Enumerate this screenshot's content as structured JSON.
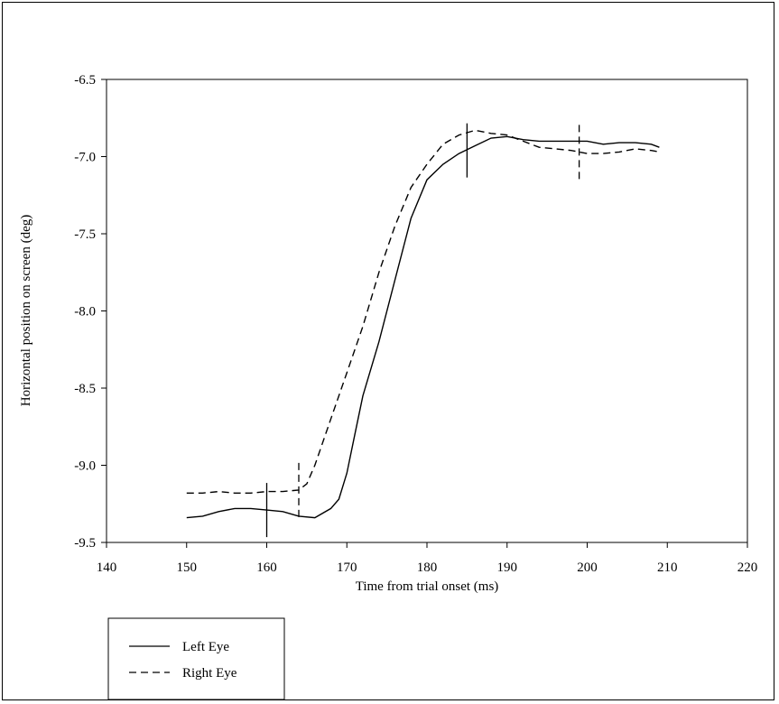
{
  "chart_data": {
    "type": "line",
    "title": "",
    "xlabel": "Time from trial onset (ms)",
    "ylabel": "Horizontal position on screen (deg)",
    "xlim": [
      140,
      220
    ],
    "ylim": [
      -9.5,
      -6.5
    ],
    "x_ticks": [
      140,
      150,
      160,
      170,
      180,
      190,
      200,
      210,
      220
    ],
    "y_ticks": [
      -6.5,
      -7.0,
      -7.5,
      -8.0,
      -8.5,
      -9.0,
      -9.5
    ],
    "x_tick_labels": [
      "140",
      "150",
      "160",
      "170",
      "180",
      "190",
      "200",
      "210",
      "220"
    ],
    "y_tick_labels": [
      "-6.5",
      "-7.0",
      "-7.5",
      "-8.0",
      "-8.5",
      "-9.0",
      "-9.5"
    ],
    "grid": false,
    "legend_position": "bottom-left",
    "series": [
      {
        "name": "Left Eye",
        "style": "solid",
        "color": "#000000",
        "points": [
          [
            150,
            -9.34
          ],
          [
            152,
            -9.33
          ],
          [
            154,
            -9.3
          ],
          [
            156,
            -9.28
          ],
          [
            158,
            -9.28
          ],
          [
            160,
            -9.29
          ],
          [
            162,
            -9.3
          ],
          [
            164,
            -9.33
          ],
          [
            166,
            -9.34
          ],
          [
            168,
            -9.28
          ],
          [
            169,
            -9.22
          ],
          [
            170,
            -9.05
          ],
          [
            171,
            -8.8
          ],
          [
            172,
            -8.55
          ],
          [
            174,
            -8.2
          ],
          [
            176,
            -7.8
          ],
          [
            178,
            -7.4
          ],
          [
            180,
            -7.15
          ],
          [
            182,
            -7.05
          ],
          [
            184,
            -6.98
          ],
          [
            186,
            -6.93
          ],
          [
            188,
            -6.88
          ],
          [
            190,
            -6.87
          ],
          [
            192,
            -6.89
          ],
          [
            194,
            -6.9
          ],
          [
            196,
            -6.9
          ],
          [
            198,
            -6.9
          ],
          [
            200,
            -6.9
          ],
          [
            202,
            -6.92
          ],
          [
            204,
            -6.91
          ],
          [
            206,
            -6.91
          ],
          [
            208,
            -6.92
          ],
          [
            209,
            -6.94
          ]
        ]
      },
      {
        "name": "Right Eye",
        "style": "dashed",
        "color": "#000000",
        "points": [
          [
            150,
            -9.18
          ],
          [
            152,
            -9.18
          ],
          [
            154,
            -9.17
          ],
          [
            156,
            -9.18
          ],
          [
            158,
            -9.18
          ],
          [
            160,
            -9.17
          ],
          [
            162,
            -9.17
          ],
          [
            164,
            -9.16
          ],
          [
            165,
            -9.12
          ],
          [
            166,
            -9.0
          ],
          [
            168,
            -8.7
          ],
          [
            170,
            -8.4
          ],
          [
            172,
            -8.1
          ],
          [
            174,
            -7.75
          ],
          [
            176,
            -7.45
          ],
          [
            178,
            -7.2
          ],
          [
            180,
            -7.05
          ],
          [
            182,
            -6.92
          ],
          [
            184,
            -6.86
          ],
          [
            186,
            -6.83
          ],
          [
            188,
            -6.85
          ],
          [
            190,
            -6.86
          ],
          [
            192,
            -6.9
          ],
          [
            194,
            -6.94
          ],
          [
            196,
            -6.95
          ],
          [
            198,
            -6.96
          ],
          [
            200,
            -6.98
          ],
          [
            202,
            -6.98
          ],
          [
            204,
            -6.97
          ],
          [
            206,
            -6.95
          ],
          [
            208,
            -6.96
          ],
          [
            209,
            -6.97
          ]
        ]
      }
    ],
    "markers": [
      {
        "series": "Left Eye",
        "x": 160,
        "y": -9.29
      },
      {
        "series": "Right Eye",
        "x": 164,
        "y": -9.16
      },
      {
        "series": "Left Eye",
        "x": 185,
        "y": -6.96
      },
      {
        "series": "Right Eye",
        "x": 199,
        "y": -6.97
      }
    ]
  }
}
